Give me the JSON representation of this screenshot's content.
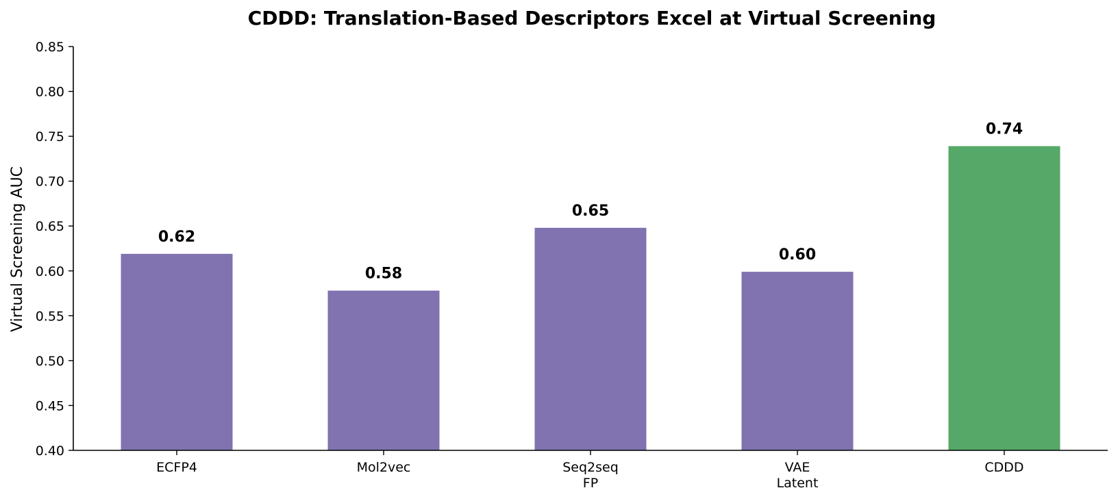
{
  "chart_data": {
    "type": "bar",
    "title": "CDDD: Translation-Based Descriptors Excel at Virtual Screening",
    "xlabel": "",
    "ylabel": "Virtual Screening AUC",
    "ylim": [
      0.4,
      0.85
    ],
    "yticks": [
      "0.40",
      "0.45",
      "0.50",
      "0.55",
      "0.60",
      "0.65",
      "0.70",
      "0.75",
      "0.80",
      "0.85"
    ],
    "categories": [
      [
        "ECFP4"
      ],
      [
        "Mol2vec"
      ],
      [
        "Seq2seq",
        "FP"
      ],
      [
        "VAE",
        "Latent"
      ],
      [
        "CDDD"
      ]
    ],
    "values": [
      0.619,
      0.578,
      0.648,
      0.599,
      0.739
    ],
    "value_labels": [
      "0.62",
      "0.58",
      "0.65",
      "0.60",
      "0.74"
    ],
    "colors": [
      "#8073b0",
      "#8073b0",
      "#8073b0",
      "#8073b0",
      "#55a868"
    ],
    "grid": false,
    "legend": "none"
  }
}
